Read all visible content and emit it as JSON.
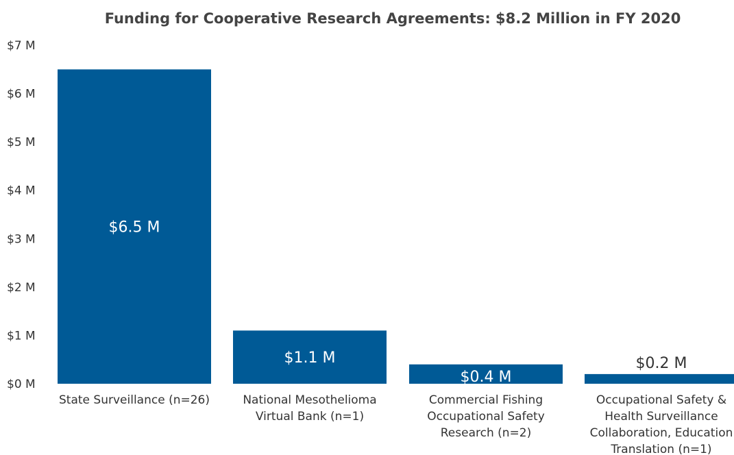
{
  "chart_data": {
    "type": "bar",
    "title": "Funding for Cooperative Research Agreements: $8.2 Million in FY 2020",
    "xlabel": "",
    "ylabel": "",
    "ylim": [
      0,
      7
    ],
    "grid": false,
    "y_ticks": [
      "$0 M",
      "$1 M",
      "$2 M",
      "$3 M",
      "$4 M",
      "$5 M",
      "$6 M",
      "$7 M"
    ],
    "categories": [
      [
        "State Surveillance (n=26)"
      ],
      [
        "National Mesothelioma",
        "Virtual Bank (n=1)"
      ],
      [
        "Commercial Fishing",
        "Occupational Safety",
        "Research  (n=2)"
      ],
      [
        "Occupational Safety &",
        "Health Surveillance",
        "Collaboration, Education",
        "Translation (n=1)"
      ]
    ],
    "values": [
      6.5,
      1.1,
      0.4,
      0.2
    ],
    "value_labels": [
      "$6.5 M",
      "$1.1 M",
      "$0.4 M",
      "$0.2 M"
    ],
    "bar_color": "#005a96"
  }
}
